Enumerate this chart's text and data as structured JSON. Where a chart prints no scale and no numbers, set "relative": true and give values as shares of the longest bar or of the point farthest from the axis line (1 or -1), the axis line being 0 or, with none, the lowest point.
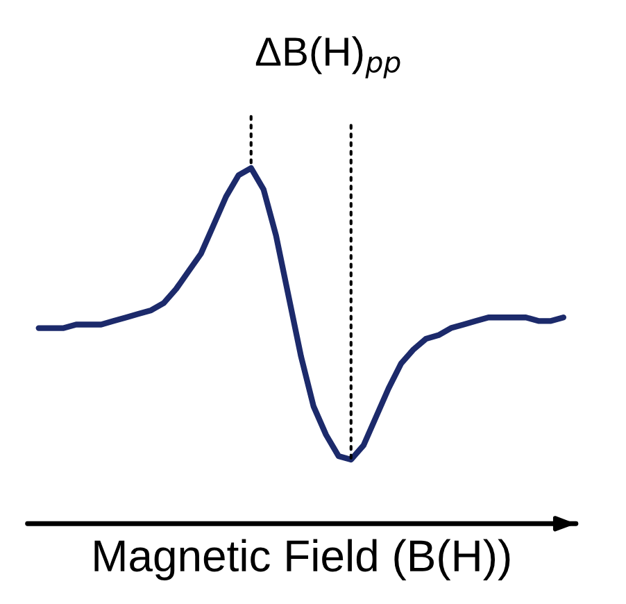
{
  "chart_data": {
    "type": "line",
    "relative": true,
    "xlabel": "Magnetic Field (B(H))",
    "annotations": [
      "ΔB(H)$_{pp}$"
    ],
    "categories": [
      null,
      null,
      null,
      null,
      null,
      null,
      null,
      null,
      null,
      null,
      null,
      null,
      null,
      null,
      null,
      null,
      null,
      null,
      null,
      null,
      null,
      null,
      null,
      null,
      null,
      null,
      null,
      null,
      null,
      null,
      null,
      null,
      null,
      null,
      null,
      null,
      null,
      null,
      null,
      null,
      null,
      null,
      null
    ],
    "series": [
      {
        "color": "#1c2a6b",
        "values": [
          0.55,
          0.55,
          0.55,
          0.56,
          0.56,
          0.56,
          0.57,
          0.58,
          0.59,
          0.6,
          0.62,
          0.66,
          0.71,
          0.76,
          0.84,
          0.92,
          0.98,
          1.0,
          0.94,
          0.81,
          0.64,
          0.47,
          0.33,
          0.25,
          0.19,
          0.18,
          0.22,
          0.3,
          0.38,
          0.45,
          0.49,
          0.52,
          0.53,
          0.55,
          0.56,
          0.57,
          0.58,
          0.58,
          0.58,
          0.58,
          0.57,
          0.57,
          0.58
        ]
      }
    ],
    "grid": false,
    "legend": false,
    "marker": "none",
    "line_style": "solid"
  }
}
